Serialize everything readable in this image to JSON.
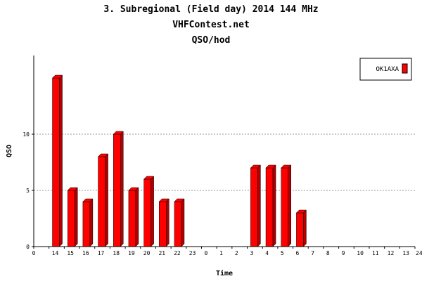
{
  "chart_data": {
    "type": "bar",
    "title": "3. Subregional (Field day) 2014 144 MHz",
    "subtitle": "VHFContest.net",
    "subtitle2": "QSO/hod",
    "xlabel": "Time",
    "ylabel": "QSO",
    "ylim": [
      0,
      17
    ],
    "yticks": [
      "0",
      "5",
      "10"
    ],
    "grid": true,
    "legend_position": "top-right",
    "x_ticks": [
      "0",
      "14",
      "15",
      "16",
      "17",
      "18",
      "19",
      "20",
      "21",
      "22",
      "23",
      "0",
      "1",
      "2",
      "3",
      "4",
      "5",
      "6",
      "7",
      "8",
      "9",
      "10",
      "11",
      "12",
      "13",
      "24"
    ],
    "categories": [
      "15",
      "16",
      "17",
      "18",
      "19",
      "20",
      "21",
      "22",
      "23",
      "0",
      "1",
      "2",
      "3",
      "4",
      "5",
      "6",
      "7"
    ],
    "series": [
      {
        "name": "OK1AXA",
        "color": "#ff0000",
        "values": [
          15,
          5,
          4,
          8,
          10,
          5,
          6,
          4,
          4,
          0,
          0,
          0,
          0,
          7,
          7,
          7,
          3
        ]
      }
    ]
  }
}
